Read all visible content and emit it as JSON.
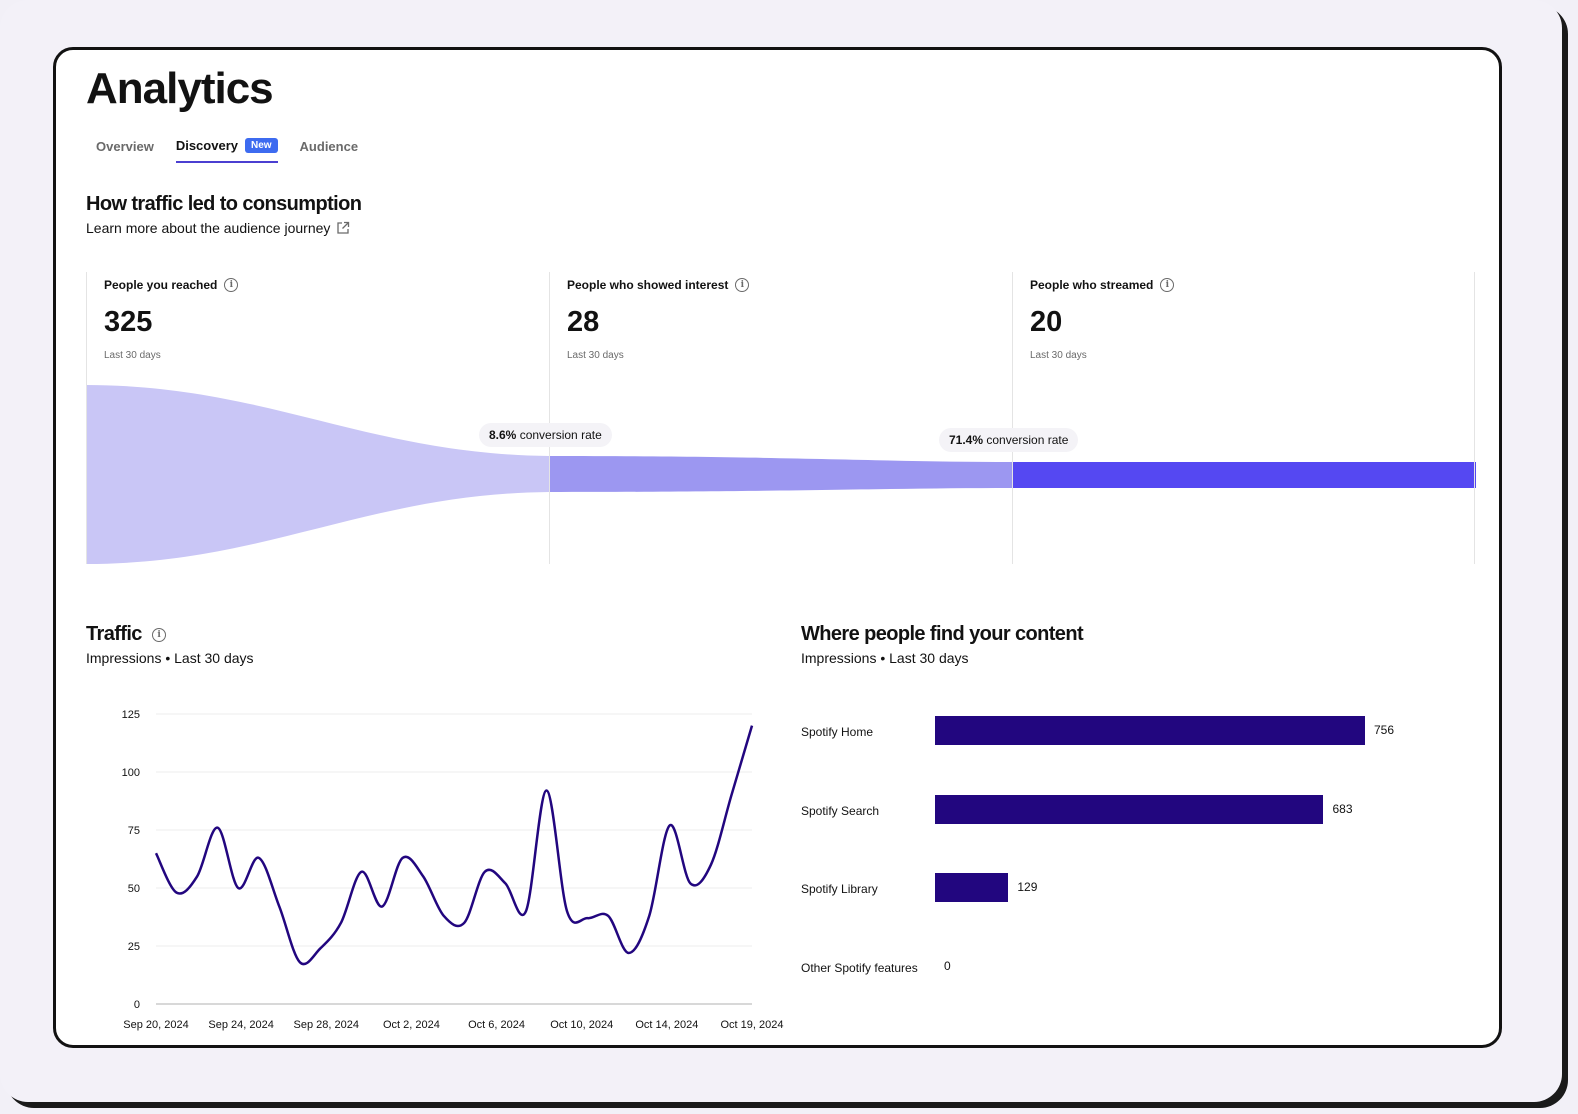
{
  "page": {
    "title": "Analytics"
  },
  "tabs": [
    {
      "label": "Overview",
      "active": false
    },
    {
      "label": "Discovery",
      "active": true,
      "badge": "New"
    },
    {
      "label": "Audience",
      "active": false
    }
  ],
  "consumption": {
    "title": "How traffic led to consumption",
    "link": "Learn more about the audience journey",
    "stages": [
      {
        "label": "People you reached",
        "value": "325",
        "period": "Last 30 days"
      },
      {
        "label": "People who showed interest",
        "value": "28",
        "period": "Last 30 days"
      },
      {
        "label": "People who streamed",
        "value": "20",
        "period": "Last 30 days"
      }
    ],
    "conversions": [
      {
        "rate": "8.6%",
        "suffix": "conversion rate"
      },
      {
        "rate": "71.4%",
        "suffix": "conversion rate"
      }
    ],
    "colors": {
      "reached": "#c9c6f6",
      "interest": "#9c97f1",
      "streamed": "#5548f2"
    }
  },
  "traffic": {
    "title": "Traffic",
    "subtitle": "Impressions • Last 30 days"
  },
  "chart_data": [
    {
      "type": "line",
      "title": "Traffic",
      "series_color": "#22067f",
      "ylim": [
        0,
        125
      ],
      "yticks": [
        0,
        25,
        50,
        75,
        100,
        125
      ],
      "xtick_labels": [
        "Sep 20, 2024",
        "Sep 24, 2024",
        "Sep 28, 2024",
        "Oct 2, 2024",
        "Oct 6, 2024",
        "Oct 10, 2024",
        "Oct 14, 2024",
        "Oct 19, 2024"
      ],
      "x": [
        "Sep 20",
        "Sep 21",
        "Sep 22",
        "Sep 23",
        "Sep 24",
        "Sep 25",
        "Sep 26",
        "Sep 27",
        "Sep 28",
        "Sep 29",
        "Sep 30",
        "Oct 1",
        "Oct 2",
        "Oct 3",
        "Oct 4",
        "Oct 5",
        "Oct 6",
        "Oct 7",
        "Oct 8",
        "Oct 9",
        "Oct 10",
        "Oct 11",
        "Oct 12",
        "Oct 13",
        "Oct 14",
        "Oct 15",
        "Oct 16",
        "Oct 17",
        "Oct 18",
        "Oct 19"
      ],
      "values": [
        65,
        48,
        55,
        76,
        50,
        63,
        42,
        18,
        24,
        35,
        57,
        42,
        63,
        55,
        38,
        35,
        57,
        52,
        40,
        92,
        40,
        37,
        38,
        22,
        38,
        77,
        52,
        60,
        90,
        120
      ],
      "grid": true
    },
    {
      "type": "bar",
      "orientation": "horizontal",
      "title": "Where people find your content",
      "subtitle": "Impressions • Last 30 days",
      "categories": [
        "Spotify Home",
        "Spotify Search",
        "Spotify Library",
        "Other Spotify features"
      ],
      "values": [
        756,
        683,
        129,
        0
      ],
      "color": "#22067f"
    }
  ]
}
